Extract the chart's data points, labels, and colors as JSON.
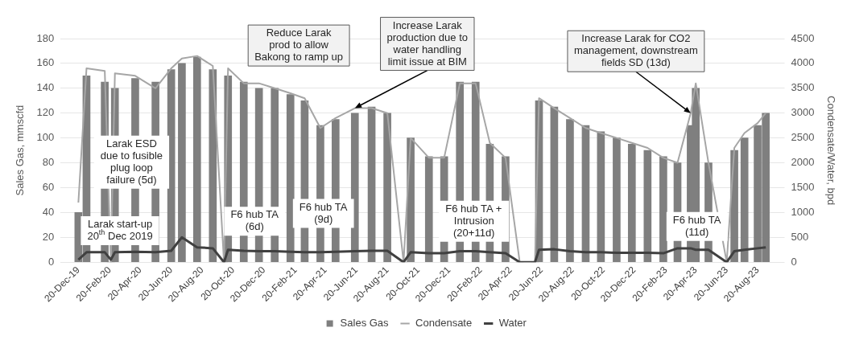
{
  "chart_data": {
    "type": "bar",
    "ylabel": "Sales Gas, mmscfd",
    "y2label": "Condensate/Water, bpd",
    "x": [
      "2019-12-20",
      "2020-01-05",
      "2020-02-10",
      "2020-02-22",
      "2020-03-01",
      "2020-04-10",
      "2020-05-20",
      "2020-06-20",
      "2020-07-11",
      "2020-08-10",
      "2020-09-10",
      "2020-10-02",
      "2020-10-10",
      "2020-11-10",
      "2020-12-10",
      "2021-01-10",
      "2021-02-10",
      "2021-03-10",
      "2021-04-10",
      "2021-05-10",
      "2021-06-17",
      "2021-07-20",
      "2021-08-20",
      "2021-09-21",
      "2021-10-05",
      "2021-11-10",
      "2021-12-10",
      "2022-01-10",
      "2022-02-10",
      "2022-03-10",
      "2022-04-10",
      "2022-05-08",
      "2022-06-07",
      "2022-06-15",
      "2022-07-15",
      "2022-08-15",
      "2022-09-15",
      "2022-10-15",
      "2022-11-15",
      "2022-12-15",
      "2023-01-15",
      "2023-02-15",
      "2023-03-15",
      "2023-04-10",
      "2023-04-20",
      "2023-05-15",
      "2023-06-20",
      "2023-07-05",
      "2023-07-25",
      "2023-08-20",
      "2023-09-05"
    ],
    "series": [
      {
        "name": "Sales Gas",
        "color": "#7f7f7f",
        "values": [
          40,
          150,
          145,
          0,
          140,
          148,
          145,
          155,
          160,
          165,
          155,
          0,
          150,
          145,
          140,
          140,
          135,
          130,
          110,
          115,
          120,
          125,
          120,
          0,
          100,
          85,
          85,
          145,
          145,
          95,
          85,
          0,
          0,
          130,
          125,
          115,
          110,
          105,
          100,
          95,
          90,
          85,
          80,
          110,
          140,
          80,
          0,
          90,
          100,
          110,
          120
        ]
      },
      {
        "name": "Condensate",
        "type": "line",
        "axis": "y2",
        "color": "#a6a6a6",
        "values": [
          1200,
          3900,
          3850,
          0,
          3800,
          3750,
          3500,
          3900,
          4100,
          4150,
          3950,
          0,
          3900,
          3600,
          3600,
          3500,
          3400,
          3300,
          2700,
          2900,
          3100,
          3100,
          3000,
          0,
          2500,
          2100,
          2100,
          3600,
          3600,
          2400,
          2100,
          0,
          0,
          3300,
          3100,
          2900,
          2700,
          2600,
          2500,
          2400,
          2300,
          2100,
          2000,
          3000,
          3600,
          2000,
          0,
          2300,
          2600,
          2800,
          3000
        ]
      },
      {
        "name": "Water",
        "type": "line",
        "axis": "y2",
        "color": "#404040",
        "values": [
          50,
          200,
          200,
          50,
          200,
          210,
          200,
          230,
          500,
          300,
          280,
          0,
          250,
          230,
          220,
          220,
          210,
          200,
          200,
          210,
          220,
          230,
          230,
          0,
          200,
          180,
          180,
          220,
          220,
          200,
          180,
          0,
          0,
          250,
          260,
          220,
          200,
          200,
          190,
          190,
          190,
          180,
          280,
          280,
          250,
          250,
          0,
          220,
          250,
          280,
          300
        ]
      }
    ],
    "xlim": [
      "2019-12-16",
      "2023-09-11"
    ],
    "xticks": [
      {
        "value": "2019-12-20",
        "label": "20-Dec-19"
      },
      {
        "value": "2020-02-20",
        "label": "20-Feb-20"
      },
      {
        "value": "2020-04-20",
        "label": "20-Apr-20"
      },
      {
        "value": "2020-06-20",
        "label": "20-Jun-20"
      },
      {
        "value": "2020-08-20",
        "label": "20-Aug-20"
      },
      {
        "value": "2020-10-20",
        "label": "20-Oct-20"
      },
      {
        "value": "2020-12-20",
        "label": "20-Dec-20"
      },
      {
        "value": "2021-02-20",
        "label": "20-Feb-21"
      },
      {
        "value": "2021-04-20",
        "label": "20-Apr-21"
      },
      {
        "value": "2021-06-20",
        "label": "20-Jun-21"
      },
      {
        "value": "2021-08-20",
        "label": "20-Aug-21"
      },
      {
        "value": "2021-10-20",
        "label": "20-Oct-21"
      },
      {
        "value": "2021-12-20",
        "label": "20-Dec-21"
      },
      {
        "value": "2022-02-20",
        "label": "20-Feb-22"
      },
      {
        "value": "2022-04-20",
        "label": "20-Apr-22"
      },
      {
        "value": "2022-06-20",
        "label": "20-Jun-22"
      },
      {
        "value": "2022-08-20",
        "label": "20-Aug-22"
      },
      {
        "value": "2022-10-20",
        "label": "20-Oct-22"
      },
      {
        "value": "2022-12-20",
        "label": "20-Dec-22"
      },
      {
        "value": "2023-02-20",
        "label": "20-Feb-23"
      },
      {
        "value": "2023-04-20",
        "label": "20-Apr-23"
      },
      {
        "value": "2023-06-20",
        "label": "20-Jun-23"
      },
      {
        "value": "2023-08-20",
        "label": "20-Aug-23"
      }
    ],
    "ylim": [
      0,
      180
    ],
    "yticks": [
      0,
      20,
      40,
      60,
      80,
      100,
      120,
      140,
      160,
      180
    ],
    "y2lim": [
      0,
      4500
    ],
    "y2ticks": [
      0,
      500,
      1000,
      1500,
      2000,
      2500,
      3000,
      3500,
      4000,
      4500
    ],
    "grid": "y",
    "legend": "bottom",
    "marker": "none",
    "line_style": "solid",
    "annotations": [
      "Larak start-up\n20$^{th}$ Dec 2019",
      "Larak ESD\ndue to fusible\nplug loop\nfailure (5d)",
      "F6 hub TA\n(6d)",
      "Reduce Larak\nprod to allow\nBakong to ramp up",
      {
        "text": "Increase Larak\nproduction due to\nwater handling\nlimit issue at BIM",
        "x": "2021-06-17",
        "y": 124
      },
      "F6 hub TA\n(9d)",
      "F6 hub TA +\nIntrusion\n(20+11d)",
      {
        "text": "Increase Larak for CO2\nmanagement, downstream\nfields SD (13d)",
        "x": "2023-04-10",
        "y": 120
      },
      "F6 hub TA\n(11d)"
    ]
  }
}
